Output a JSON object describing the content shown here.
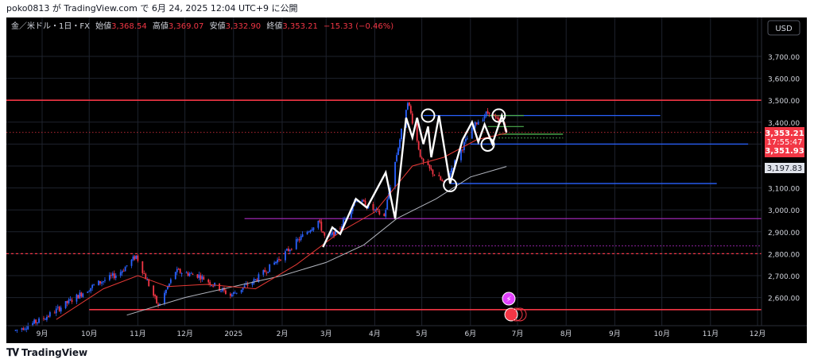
{
  "header": {
    "attribution": "poko0813 が TradingView.com で 6月 24, 2025 12:04 UTC+9 に公開"
  },
  "legend": {
    "symbol": "金／米ドル・1日・FX",
    "open_label": "始値",
    "open_value": "3,368.54",
    "high_label": "高値",
    "high_value": "3,369.07",
    "low_label": "安値",
    "low_value": "3,332.90",
    "close_label": "終値",
    "close_value": "3,353.21",
    "change": "−15.33 (−0.46%)"
  },
  "currency_button": "USD",
  "price_labels": {
    "last_price": "3,353.21",
    "countdown": "17:55:47",
    "bid": "3,351.93",
    "ma_value": "3,197.83"
  },
  "footer": {
    "brand": "TradingView"
  },
  "colors": {
    "background": "#000000",
    "bullish": "#2962ff",
    "bearish": "#f23645",
    "resistance_red": "#f23645",
    "blue_line": "#2962ff",
    "purple_line": "#9c27b0",
    "green_line": "#4caf50",
    "sma_short": "#e53935",
    "sma_long": "#b2b5be"
  },
  "chart_data": {
    "type": "candlestick",
    "symbol": "XAU/USD",
    "timeframe": "1D",
    "ylim": [
      2510,
      3790
    ],
    "y_ticks": [
      2600,
      2700,
      2800,
      2900,
      3000,
      3100,
      3200,
      3300,
      3400,
      3500,
      3600,
      3700
    ],
    "y_tick_labels": [
      "2,600.00",
      "2,700.00",
      "2,800.00",
      "2,900.00",
      "3,000.00",
      "3,100.00",
      "3,200.00",
      "3,300.00",
      "3,400.00",
      "3,500.00",
      "3,600.00",
      "3,700.00"
    ],
    "x_ticks": [
      {
        "date": "2024-09-01",
        "label": "9月"
      },
      {
        "date": "2024-10-01",
        "label": "10月"
      },
      {
        "date": "2024-11-01",
        "label": "11月"
      },
      {
        "date": "2024-12-01",
        "label": "12月"
      },
      {
        "date": "2025-01-01",
        "label": "2025"
      },
      {
        "date": "2025-02-01",
        "label": "2月"
      },
      {
        "date": "2025-03-01",
        "label": "3月"
      },
      {
        "date": "2025-04-01",
        "label": "4月"
      },
      {
        "date": "2025-05-01",
        "label": "5月"
      },
      {
        "date": "2025-06-01",
        "label": "6月"
      },
      {
        "date": "2025-07-01",
        "label": "7月"
      },
      {
        "date": "2025-08-01",
        "label": "8月"
      },
      {
        "date": "2025-09-01",
        "label": "9月"
      },
      {
        "date": "2025-10-01",
        "label": "10月"
      },
      {
        "date": "2025-11-01",
        "label": "11月"
      },
      {
        "date": "2025-12-01",
        "label": "12月"
      }
    ],
    "price_path": [
      [
        "2024-08-15",
        2450
      ],
      [
        "2024-09-01",
        2500
      ],
      [
        "2024-09-20",
        2590
      ],
      [
        "2024-10-05",
        2660
      ],
      [
        "2024-10-20",
        2710
      ],
      [
        "2024-10-31",
        2790
      ],
      [
        "2024-11-14",
        2560
      ],
      [
        "2024-11-25",
        2720
      ],
      [
        "2024-12-10",
        2700
      ],
      [
        "2024-12-30",
        2610
      ],
      [
        "2025-01-15",
        2680
      ],
      [
        "2025-02-01",
        2790
      ],
      [
        "2025-02-24",
        2950
      ],
      [
        "2025-03-01",
        2860
      ],
      [
        "2025-03-10",
        2920
      ],
      [
        "2025-03-20",
        3050
      ],
      [
        "2025-04-07",
        2970
      ],
      [
        "2025-04-22",
        3500
      ],
      [
        "2025-05-01",
        3220
      ],
      [
        "2025-05-15",
        3120
      ],
      [
        "2025-05-28",
        3300
      ],
      [
        "2025-06-05",
        3400
      ],
      [
        "2025-06-13",
        3450
      ],
      [
        "2025-06-24",
        3353.21
      ]
    ],
    "candle_series_start": "2024-08-15",
    "candle_series_end": "2025-06-24",
    "sma_short_path": [
      [
        "2024-09-10",
        2500
      ],
      [
        "2024-10-10",
        2640
      ],
      [
        "2024-11-01",
        2700
      ],
      [
        "2024-11-20",
        2650
      ],
      [
        "2024-12-15",
        2660
      ],
      [
        "2025-01-15",
        2640
      ],
      [
        "2025-02-10",
        2750
      ],
      [
        "2025-03-10",
        2900
      ],
      [
        "2025-04-01",
        2990
      ],
      [
        "2025-04-25",
        3200
      ],
      [
        "2025-05-15",
        3240
      ],
      [
        "2025-06-05",
        3320
      ],
      [
        "2025-06-24",
        3350
      ]
    ],
    "sma_long_path": [
      [
        "2024-10-25",
        2520
      ],
      [
        "2024-12-01",
        2600
      ],
      [
        "2025-01-01",
        2650
      ],
      [
        "2025-02-01",
        2700
      ],
      [
        "2025-03-01",
        2760
      ],
      [
        "2025-03-25",
        2840
      ],
      [
        "2025-04-15",
        2960
      ],
      [
        "2025-05-10",
        3050
      ],
      [
        "2025-06-01",
        3150
      ],
      [
        "2025-06-24",
        3197.83
      ]
    ],
    "zigzag": [
      [
        "2025-02-27",
        2830
      ],
      [
        "2025-03-05",
        2920
      ],
      [
        "2025-03-10",
        2890
      ],
      [
        "2025-03-20",
        3050
      ],
      [
        "2025-03-27",
        3010
      ],
      [
        "2025-04-08",
        3170
      ],
      [
        "2025-04-14",
        2960
      ],
      [
        "2025-04-21",
        3420
      ],
      [
        "2025-04-25",
        3330
      ],
      [
        "2025-04-28",
        3420
      ],
      [
        "2025-05-02",
        3300
      ],
      [
        "2025-05-05",
        3380
      ],
      [
        "2025-05-07",
        3240
      ],
      [
        "2025-05-12",
        3430
      ],
      [
        "2025-05-19",
        3120
      ],
      [
        "2025-05-27",
        3320
      ],
      [
        "2025-06-02",
        3400
      ],
      [
        "2025-06-06",
        3310
      ],
      [
        "2025-06-10",
        3390
      ],
      [
        "2025-06-15",
        3300
      ],
      [
        "2025-06-21",
        3430
      ],
      [
        "2025-06-24",
        3353
      ]
    ],
    "circles": [
      {
        "date": "2025-05-05",
        "price": 3430
      },
      {
        "date": "2025-05-19",
        "price": 3113
      },
      {
        "date": "2025-06-12",
        "price": 3298
      },
      {
        "date": "2025-06-19",
        "price": 3430
      }
    ],
    "horizontal_levels": [
      {
        "price": 3500,
        "from": "full",
        "to": "full",
        "color": "#f23645",
        "width": 1.6,
        "style": "solid"
      },
      {
        "price": 3430,
        "from": "2025-05-02",
        "to": "2025-09-30",
        "color": "#2962ff",
        "width": 1.3,
        "style": "solid"
      },
      {
        "price": 3430,
        "from": "2025-06-12",
        "to": "2025-07-05",
        "color": "#4caf50",
        "width": 1.2,
        "style": "solid"
      },
      {
        "price": 3380,
        "from": "2025-06-12",
        "to": "2025-07-05",
        "color": "#4caf50",
        "width": 1.2,
        "style": "solid"
      },
      {
        "price": 3345,
        "from": "2025-06-19",
        "to": "2025-07-30",
        "color": "#4caf50",
        "width": 1.4,
        "style": "solid"
      },
      {
        "price": 3328,
        "from": "2025-06-19",
        "to": "2025-07-30",
        "color": "#4caf50",
        "width": 1.2,
        "style": "dotted"
      },
      {
        "price": 3300,
        "from": "2025-06-01",
        "to": "2025-11-25",
        "color": "#2962ff",
        "width": 1.3,
        "style": "solid"
      },
      {
        "price": 3120,
        "from": "2025-05-19",
        "to": "2025-11-05",
        "color": "#2962ff",
        "width": 1.3,
        "style": "solid"
      },
      {
        "price": 2960,
        "from": "2025-01-08",
        "to": "full",
        "color": "#9c27b0",
        "width": 1.3,
        "style": "solid"
      },
      {
        "price": 2836,
        "from": "2025-03-01",
        "to": "full",
        "color": "#9c27b0",
        "width": 1.2,
        "style": "dotted"
      },
      {
        "price": 2800,
        "from": "full",
        "to": "full",
        "color": "#f23645",
        "width": 1.2,
        "style": "dashed"
      },
      {
        "price": 2545,
        "from": "2024-10-01",
        "to": "full",
        "color": "#f23645",
        "width": 1.6,
        "style": "solid"
      },
      {
        "price": 3353.21,
        "from": "full",
        "to": "full",
        "color": "#f23645",
        "width": 0.8,
        "style": "dotted"
      }
    ]
  }
}
